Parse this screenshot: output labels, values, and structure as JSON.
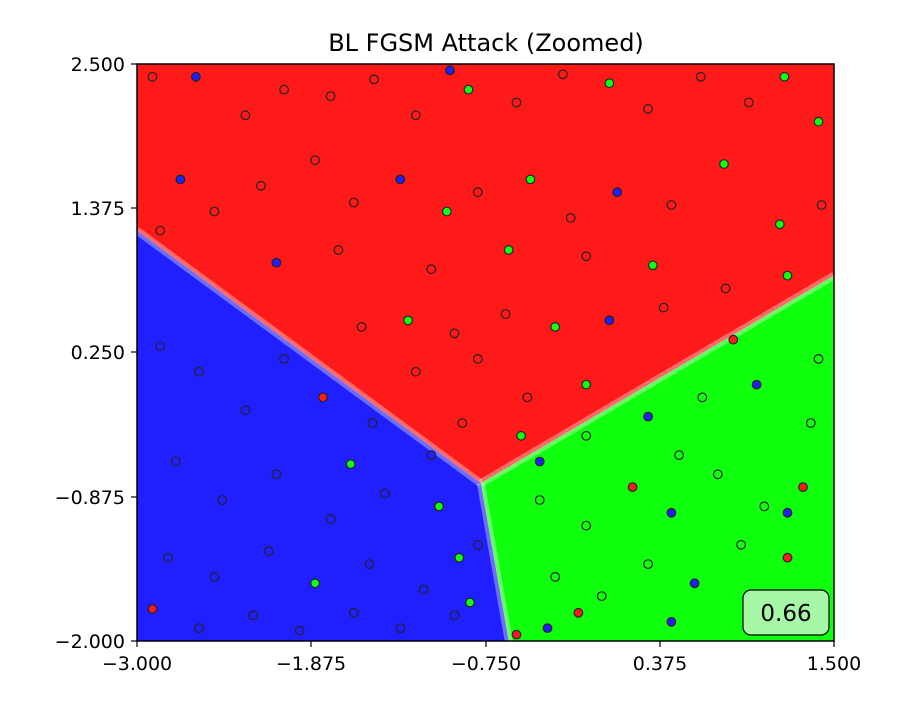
{
  "chart_data": {
    "type": "scatter",
    "title": "BL FGSM Attack (Zoomed)",
    "xlabel": "",
    "ylabel": "",
    "xlim": [
      -3.0,
      1.5
    ],
    "ylim": [
      -2.0,
      2.5
    ],
    "xticks": [
      "−3.000",
      "−1.875",
      "−0.750",
      "0.375",
      "1.500"
    ],
    "yticks": [
      "−2.000",
      "−0.875",
      "0.250",
      "1.375",
      "2.500"
    ],
    "grid": false,
    "background": "decision-regions",
    "region_colors": {
      "red": "#ff1a1a",
      "blue": "#1f1fff",
      "green": "#0fff0f"
    },
    "region_boundary_junction": [
      -0.78,
      -0.77
    ],
    "point_classes": [
      "red",
      "blue",
      "green"
    ],
    "score_label": "0.66",
    "score_box_color": "#a6f7a6",
    "points": [
      {
        "x": -2.9,
        "y": 2.4,
        "c": "red"
      },
      {
        "x": -2.62,
        "y": 2.4,
        "c": "blue"
      },
      {
        "x": -2.3,
        "y": 2.1,
        "c": "red"
      },
      {
        "x": -2.05,
        "y": 2.3,
        "c": "red"
      },
      {
        "x": -1.75,
        "y": 2.25,
        "c": "red"
      },
      {
        "x": -1.47,
        "y": 2.38,
        "c": "red"
      },
      {
        "x": -1.2,
        "y": 2.1,
        "c": "red"
      },
      {
        "x": -0.98,
        "y": 2.45,
        "c": "blue"
      },
      {
        "x": -0.86,
        "y": 2.3,
        "c": "green"
      },
      {
        "x": -0.55,
        "y": 2.2,
        "c": "red"
      },
      {
        "x": -0.25,
        "y": 2.42,
        "c": "red"
      },
      {
        "x": 0.05,
        "y": 2.35,
        "c": "green"
      },
      {
        "x": 0.3,
        "y": 2.15,
        "c": "red"
      },
      {
        "x": 0.64,
        "y": 2.4,
        "c": "red"
      },
      {
        "x": 0.95,
        "y": 2.2,
        "c": "red"
      },
      {
        "x": 1.18,
        "y": 2.4,
        "c": "green"
      },
      {
        "x": 1.4,
        "y": 2.05,
        "c": "green"
      },
      {
        "x": -2.72,
        "y": 1.6,
        "c": "blue"
      },
      {
        "x": -2.5,
        "y": 1.35,
        "c": "red"
      },
      {
        "x": -2.2,
        "y": 1.55,
        "c": "red"
      },
      {
        "x": -1.85,
        "y": 1.75,
        "c": "red"
      },
      {
        "x": -1.6,
        "y": 1.42,
        "c": "red"
      },
      {
        "x": -1.3,
        "y": 1.6,
        "c": "blue"
      },
      {
        "x": -1.0,
        "y": 1.35,
        "c": "green"
      },
      {
        "x": -0.8,
        "y": 1.5,
        "c": "red"
      },
      {
        "x": -0.46,
        "y": 1.6,
        "c": "green"
      },
      {
        "x": -0.2,
        "y": 1.3,
        "c": "red"
      },
      {
        "x": 0.1,
        "y": 1.5,
        "c": "blue"
      },
      {
        "x": 0.45,
        "y": 1.4,
        "c": "red"
      },
      {
        "x": 0.79,
        "y": 1.72,
        "c": "green"
      },
      {
        "x": 1.15,
        "y": 1.25,
        "c": "green"
      },
      {
        "x": 1.42,
        "y": 1.4,
        "c": "red"
      },
      {
        "x": -2.85,
        "y": 1.2,
        "c": "red"
      },
      {
        "x": -2.1,
        "y": 0.95,
        "c": "blue"
      },
      {
        "x": -1.7,
        "y": 1.05,
        "c": "red"
      },
      {
        "x": -1.1,
        "y": 0.9,
        "c": "red"
      },
      {
        "x": -0.6,
        "y": 1.05,
        "c": "green"
      },
      {
        "x": -0.1,
        "y": 1.0,
        "c": "red"
      },
      {
        "x": 0.33,
        "y": 0.93,
        "c": "green"
      },
      {
        "x": 0.8,
        "y": 0.75,
        "c": "red"
      },
      {
        "x": 1.2,
        "y": 0.85,
        "c": "green"
      },
      {
        "x": -1.55,
        "y": 0.45,
        "c": "red"
      },
      {
        "x": -1.25,
        "y": 0.5,
        "c": "green"
      },
      {
        "x": -0.95,
        "y": 0.4,
        "c": "red"
      },
      {
        "x": -0.62,
        "y": 0.55,
        "c": "red"
      },
      {
        "x": -0.3,
        "y": 0.45,
        "c": "green"
      },
      {
        "x": 0.05,
        "y": 0.5,
        "c": "blue"
      },
      {
        "x": 0.4,
        "y": 0.6,
        "c": "red"
      },
      {
        "x": -1.2,
        "y": 0.1,
        "c": "red"
      },
      {
        "x": -0.8,
        "y": 0.2,
        "c": "red"
      },
      {
        "x": -0.48,
        "y": -0.1,
        "c": "red"
      },
      {
        "x": -0.1,
        "y": 0.0,
        "c": "green"
      },
      {
        "x": -0.9,
        "y": -0.3,
        "c": "red"
      },
      {
        "x": -0.52,
        "y": -0.4,
        "c": "green"
      },
      {
        "x": 0.85,
        "y": 0.35,
        "c": "red"
      },
      {
        "x": -2.85,
        "y": 0.3,
        "c": "blue"
      },
      {
        "x": -2.6,
        "y": 0.1,
        "c": "blue"
      },
      {
        "x": -2.3,
        "y": -0.2,
        "c": "blue"
      },
      {
        "x": -2.05,
        "y": 0.2,
        "c": "blue"
      },
      {
        "x": -1.8,
        "y": -0.1,
        "c": "red"
      },
      {
        "x": -1.48,
        "y": -0.3,
        "c": "blue"
      },
      {
        "x": -1.62,
        "y": -0.62,
        "c": "green"
      },
      {
        "x": -1.1,
        "y": -0.55,
        "c": "blue"
      },
      {
        "x": -2.75,
        "y": -0.6,
        "c": "blue"
      },
      {
        "x": -2.45,
        "y": -0.9,
        "c": "blue"
      },
      {
        "x": -2.1,
        "y": -0.7,
        "c": "blue"
      },
      {
        "x": -1.75,
        "y": -1.05,
        "c": "blue"
      },
      {
        "x": -1.4,
        "y": -0.85,
        "c": "blue"
      },
      {
        "x": -1.05,
        "y": -0.95,
        "c": "green"
      },
      {
        "x": -0.8,
        "y": -1.25,
        "c": "blue"
      },
      {
        "x": -2.8,
        "y": -1.35,
        "c": "blue"
      },
      {
        "x": -2.5,
        "y": -1.5,
        "c": "blue"
      },
      {
        "x": -2.15,
        "y": -1.3,
        "c": "blue"
      },
      {
        "x": -1.85,
        "y": -1.55,
        "c": "green"
      },
      {
        "x": -1.5,
        "y": -1.4,
        "c": "blue"
      },
      {
        "x": -1.15,
        "y": -1.6,
        "c": "blue"
      },
      {
        "x": -0.92,
        "y": -1.35,
        "c": "green"
      },
      {
        "x": -2.9,
        "y": -1.75,
        "c": "red"
      },
      {
        "x": -2.6,
        "y": -1.9,
        "c": "blue"
      },
      {
        "x": -2.25,
        "y": -1.8,
        "c": "blue"
      },
      {
        "x": -1.95,
        "y": -1.92,
        "c": "blue"
      },
      {
        "x": -1.6,
        "y": -1.78,
        "c": "blue"
      },
      {
        "x": -1.3,
        "y": -1.9,
        "c": "blue"
      },
      {
        "x": -0.95,
        "y": -1.8,
        "c": "blue"
      },
      {
        "x": -0.85,
        "y": -1.7,
        "c": "green"
      },
      {
        "x": -0.55,
        "y": -1.95,
        "c": "red"
      },
      {
        "x": -0.4,
        "y": -0.9,
        "c": "green"
      },
      {
        "x": -0.1,
        "y": -1.1,
        "c": "green"
      },
      {
        "x": 0.2,
        "y": -0.8,
        "c": "red"
      },
      {
        "x": 0.45,
        "y": -1.0,
        "c": "blue"
      },
      {
        "x": 0.75,
        "y": -0.7,
        "c": "green"
      },
      {
        "x": 1.05,
        "y": -0.95,
        "c": "green"
      },
      {
        "x": 1.3,
        "y": -0.8,
        "c": "red"
      },
      {
        "x": -0.3,
        "y": -1.5,
        "c": "green"
      },
      {
        "x": 0.0,
        "y": -1.65,
        "c": "green"
      },
      {
        "x": 0.3,
        "y": -1.4,
        "c": "green"
      },
      {
        "x": 0.6,
        "y": -1.55,
        "c": "blue"
      },
      {
        "x": 0.9,
        "y": -1.25,
        "c": "green"
      },
      {
        "x": 1.2,
        "y": -1.35,
        "c": "red"
      },
      {
        "x": -0.35,
        "y": -1.9,
        "c": "blue"
      },
      {
        "x": -0.15,
        "y": -1.78,
        "c": "red"
      },
      {
        "x": 0.45,
        "y": -1.85,
        "c": "blue"
      },
      {
        "x": 1.0,
        "y": -1.8,
        "c": "green"
      },
      {
        "x": -0.1,
        "y": -0.4,
        "c": "green"
      },
      {
        "x": 0.3,
        "y": -0.25,
        "c": "blue"
      },
      {
        "x": 0.65,
        "y": -0.1,
        "c": "green"
      },
      {
        "x": 1.0,
        "y": 0.0,
        "c": "blue"
      },
      {
        "x": 1.35,
        "y": -0.3,
        "c": "green"
      },
      {
        "x": 1.2,
        "y": -1.0,
        "c": "blue"
      },
      {
        "x": 0.5,
        "y": -0.55,
        "c": "green"
      },
      {
        "x": -0.4,
        "y": -0.6,
        "c": "blue"
      },
      {
        "x": 1.4,
        "y": 0.2,
        "c": "green"
      }
    ]
  }
}
